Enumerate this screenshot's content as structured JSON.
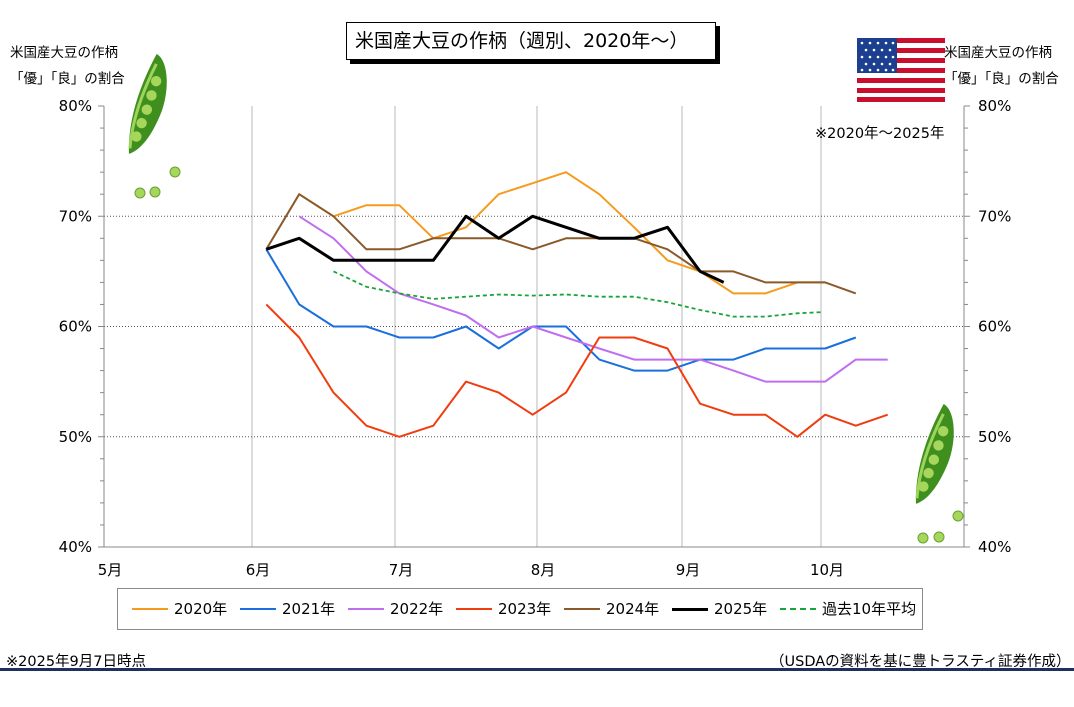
{
  "title": "米国産大豆の作柄（週別、2020年～）",
  "left_axis_label": [
    "米国産大豆の作柄",
    "「優」「良」の割合"
  ],
  "right_axis_label": [
    "米国産大豆の作柄",
    "「優」「良」の割合"
  ],
  "period_note": "※2020年～2025年",
  "footnote": "※2025年9月7日時点",
  "source": "（USDAの資料を基に豊トラスティ証券作成）",
  "colors": {
    "2020年": "#f59b1f",
    "2021年": "#1a6fdc",
    "2022年": "#c06ef0",
    "2023年": "#f03d0f",
    "2024年": "#8b5a2b",
    "2025年": "#000000",
    "過去10年平均": "#1aa53a"
  },
  "chart_data": {
    "type": "line",
    "title": "米国産大豆の作柄（週別、2020年～）",
    "ylabel": "米国産大豆の作柄「優」「良」の割合",
    "x_ticks": [
      "5月",
      "6月",
      "7月",
      "8月",
      "9月",
      "10月"
    ],
    "y_ticks": [
      "40%",
      "50%",
      "60%",
      "70%",
      "80%"
    ],
    "ylim": [
      40,
      80
    ],
    "y_unit": "%",
    "grid": "horizontal dotted at 50/60/70; vertical at month starts",
    "legend_position": "bottom",
    "x_unit": "month (5 = May 1, fractional = position within months)",
    "series": [
      {
        "name": "2020年",
        "style": "solid",
        "x": [
          6.33,
          6.57,
          6.8,
          7.03,
          7.27,
          7.5,
          7.73,
          7.97,
          8.2,
          8.43,
          8.67,
          8.9,
          9.13,
          9.37,
          9.6,
          9.83,
          10.03
        ],
        "values": [
          72,
          70,
          71,
          71,
          68,
          69,
          72,
          73,
          74,
          72,
          69,
          66,
          65,
          63,
          63,
          64,
          64
        ]
      },
      {
        "name": "2021年",
        "style": "solid",
        "x": [
          6.1,
          6.33,
          6.57,
          6.8,
          7.03,
          7.27,
          7.5,
          7.73,
          7.97,
          8.2,
          8.43,
          8.67,
          8.9,
          9.13,
          9.37,
          9.6,
          9.83,
          10.03,
          10.25
        ],
        "values": [
          67,
          62,
          60,
          60,
          59,
          59,
          60,
          58,
          60,
          60,
          57,
          56,
          56,
          57,
          57,
          58,
          58,
          58,
          59
        ]
      },
      {
        "name": "2022年",
        "style": "solid",
        "x": [
          6.33,
          6.57,
          6.8,
          7.03,
          7.27,
          7.5,
          7.73,
          7.97,
          8.2,
          8.43,
          8.67,
          8.9,
          9.13,
          9.37,
          9.6,
          9.83,
          10.03,
          10.25,
          10.48
        ],
        "values": [
          70,
          68,
          65,
          63,
          62,
          61,
          59,
          60,
          59,
          58,
          57,
          57,
          57,
          56,
          55,
          55,
          55,
          57,
          57
        ]
      },
      {
        "name": "2023年",
        "style": "solid",
        "x": [
          6.1,
          6.33,
          6.57,
          6.8,
          7.03,
          7.27,
          7.5,
          7.73,
          7.97,
          8.2,
          8.43,
          8.67,
          8.9,
          9.13,
          9.37,
          9.6,
          9.83,
          10.03,
          10.25,
          10.48
        ],
        "values": [
          62,
          59,
          54,
          51,
          50,
          51,
          55,
          54,
          52,
          54,
          59,
          59,
          58,
          53,
          52,
          52,
          50,
          52,
          51,
          52
        ]
      },
      {
        "name": "2024年",
        "style": "solid",
        "x": [
          6.1,
          6.33,
          6.57,
          6.8,
          7.03,
          7.27,
          7.5,
          7.73,
          7.97,
          8.2,
          8.43,
          8.67,
          8.9,
          9.13,
          9.37,
          9.6,
          9.83,
          10.03,
          10.25
        ],
        "values": [
          67,
          72,
          70,
          67,
          67,
          68,
          68,
          68,
          67,
          68,
          68,
          68,
          67,
          65,
          65,
          64,
          64,
          64,
          63
        ]
      },
      {
        "name": "2025年",
        "style": "solid-bold",
        "x": [
          6.1,
          6.33,
          6.57,
          6.8,
          7.03,
          7.27,
          7.5,
          7.73,
          7.97,
          8.2,
          8.43,
          8.67,
          8.9,
          9.13,
          9.3
        ],
        "values": [
          67,
          68,
          66,
          66,
          66,
          66,
          70,
          68,
          70,
          69,
          68,
          68,
          69,
          65,
          64
        ]
      },
      {
        "name": "過去10年平均",
        "style": "dashed",
        "x": [
          6.57,
          6.8,
          7.03,
          7.27,
          7.5,
          7.73,
          7.97,
          8.2,
          8.43,
          8.67,
          8.9,
          9.13,
          9.37,
          9.6,
          9.83,
          10.0
        ],
        "values": [
          65,
          63.6,
          63,
          62.5,
          62.7,
          62.9,
          62.8,
          62.9,
          62.7,
          62.7,
          62.2,
          61.5,
          60.9,
          60.9,
          61.2,
          61.3
        ]
      }
    ]
  }
}
